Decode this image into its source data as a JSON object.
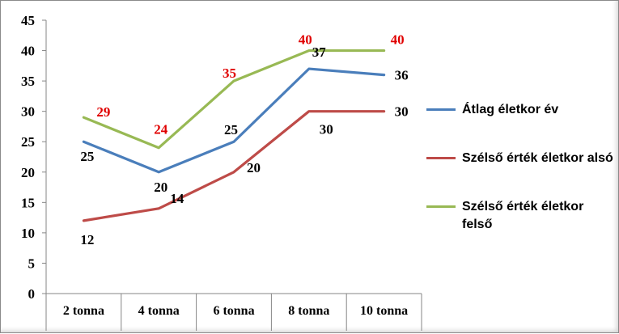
{
  "chart_data": {
    "type": "line",
    "categories": [
      "2 tonna",
      "4 tonna",
      "6 tonna",
      "8 tonna",
      "10 tonna"
    ],
    "ylim": [
      0,
      45
    ],
    "yticks": [
      "0",
      "5",
      "10",
      "15",
      "20",
      "25",
      "30",
      "35",
      "40",
      "45"
    ],
    "grid": false,
    "legend_position": "right",
    "series": [
      {
        "name": "Átlag életkor év",
        "values": [
          25,
          20,
          25,
          37,
          36
        ],
        "labels": [
          "25",
          "20",
          "25",
          "37",
          "36"
        ],
        "color": "#4a7ebb",
        "label_color": "#000000"
      },
      {
        "name": "Szélső érték életkor alsó",
        "values": [
          12,
          14,
          20,
          30,
          30
        ],
        "labels": [
          "12",
          "14",
          "20",
          "30",
          "30"
        ],
        "color": "#be4b48",
        "label_color": "#000000"
      },
      {
        "name": "Szélső érték életkor felső",
        "values": [
          29,
          24,
          35,
          40,
          40
        ],
        "labels": [
          "29",
          "24",
          "35",
          "40",
          "40"
        ],
        "color": "#98b954",
        "label_color": "#e00000"
      }
    ]
  }
}
